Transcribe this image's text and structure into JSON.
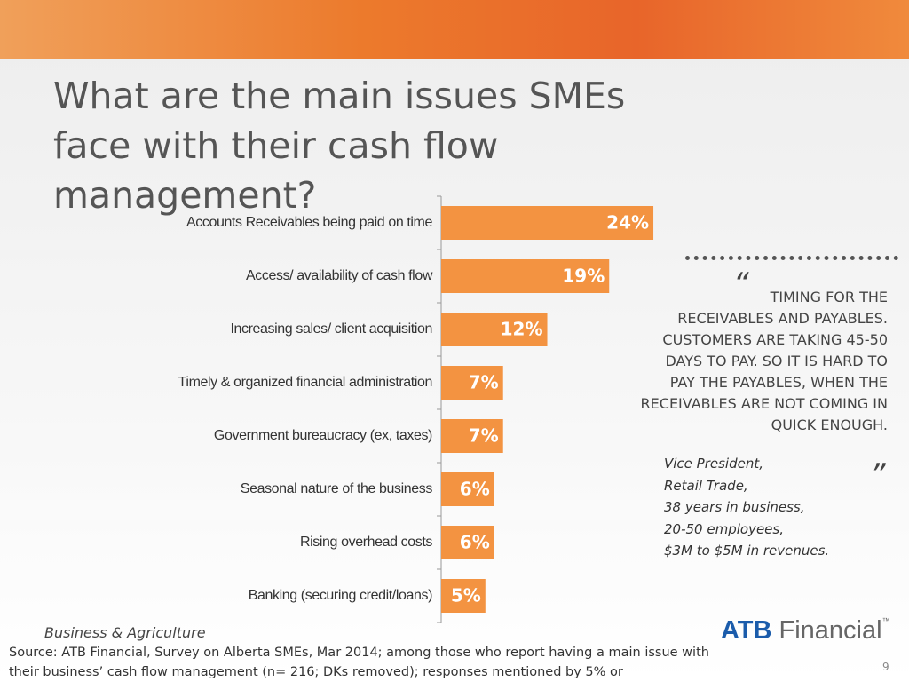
{
  "slide": {
    "title": "What are the main issues SMEs face with their cash flow management?",
    "quote_open": "“",
    "quote": "TIMING FOR THE RECEIVABLES AND PAYABLES. CUSTOMERS ARE TAKING 45-50 DAYS TO PAY. SO IT IS HARD TO PAY THE PAYABLES, WHEN THE RECEIVABLES ARE NOT COMING IN QUICK ENOUGH.",
    "quote_close": "”",
    "attribution": [
      "Vice President,",
      "Retail Trade,",
      "38 years in business,",
      "20-50 employees,",
      "$3M to $5M in revenues."
    ],
    "section": "Business & Agriculture",
    "source": "Source:  ATB Financial, Survey on Alberta SMEs, Mar 2014;  among those who report having a main issue with their  business’ cash flow management (n= 216; DKs removed); responses mentioned by 5% or",
    "logo_brand": "ATB",
    "logo_name": "Financial",
    "logo_mark": "™",
    "page_number": "9"
  },
  "chart_data": {
    "type": "hbar",
    "categories": [
      "Accounts Receivables being paid on time",
      "Access/ availability of cash flow",
      "Increasing sales/ client acquisition",
      "Timely & organized financial administration",
      "Government bureaucracy (ex, taxes)",
      "Seasonal nature of the business",
      "Rising overhead costs",
      "Banking (securing credit/loans)"
    ],
    "values": [
      24,
      19,
      12,
      7,
      7,
      6,
      6,
      5
    ],
    "value_labels": [
      "24%",
      "19%",
      "12%",
      "7%",
      "7%",
      "6%",
      "6%",
      "5%"
    ],
    "color": "#f39341"
  }
}
